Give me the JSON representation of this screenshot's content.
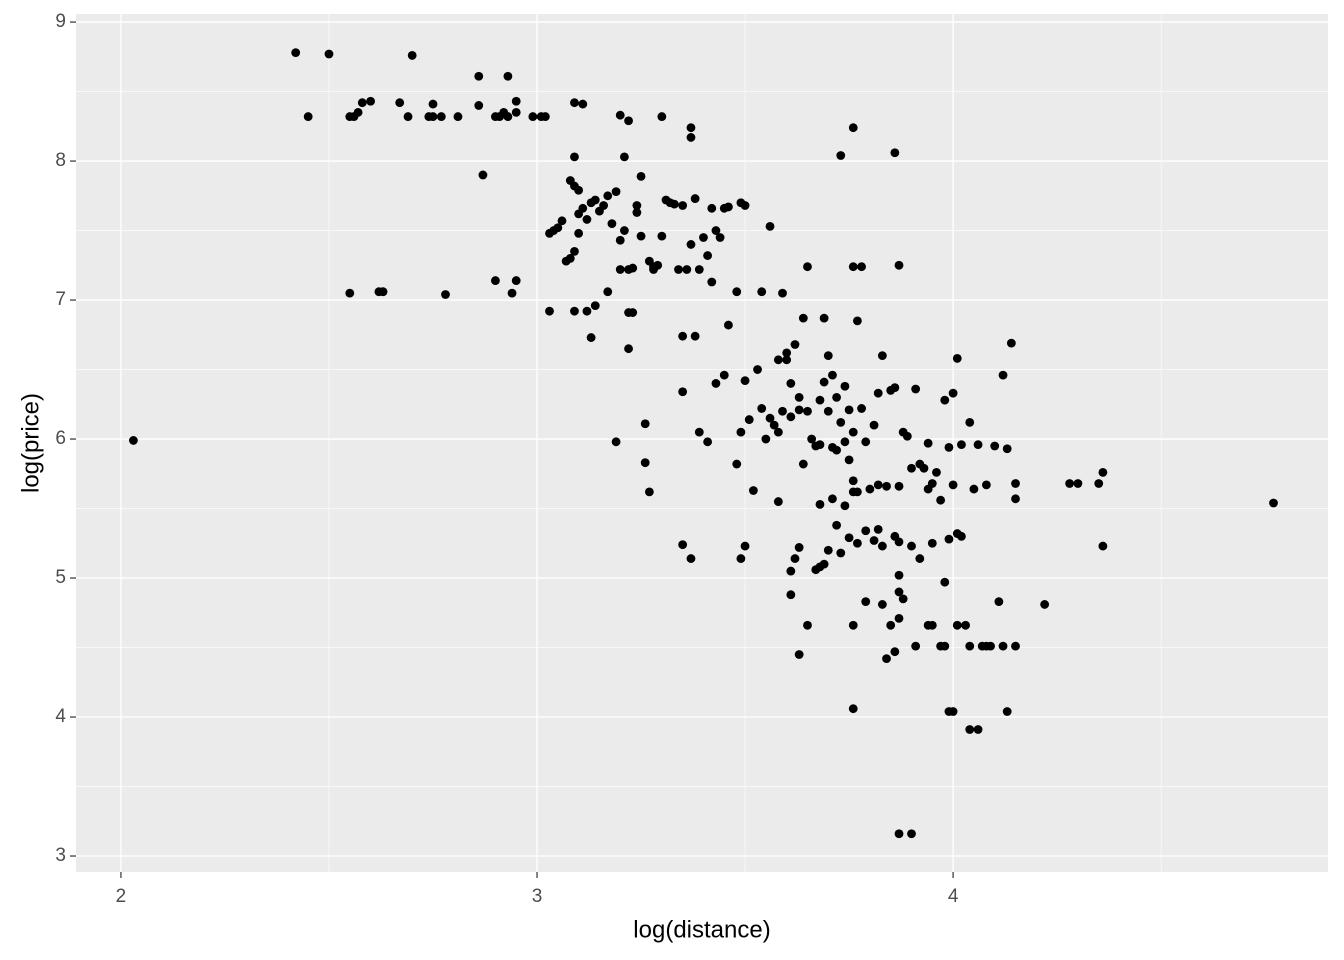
{
  "chart_data": {
    "type": "scatter",
    "x_label": "log(distance)",
    "y_label": "log(price)",
    "color": "#000000",
    "grid": true,
    "xlim": [
      1.892,
      4.901
    ],
    "ylim": [
      2.885,
      9.058
    ],
    "xticks": [
      2,
      3,
      4
    ],
    "yticks": [
      3,
      4,
      5,
      6,
      7,
      8,
      9
    ],
    "x": [
      2.03,
      2.42,
      2.5,
      2.7,
      2.45,
      2.55,
      2.56,
      2.57,
      2.58,
      2.6,
      2.67,
      2.69,
      2.74,
      2.75,
      2.75,
      2.77,
      2.81,
      2.86,
      2.86,
      2.87,
      2.9,
      2.91,
      2.92,
      2.93,
      2.93,
      2.95,
      2.95,
      2.99,
      3.01,
      3.02,
      3.09,
      3.11,
      3.2,
      3.22,
      3.3,
      3.37,
      3.37,
      3.73,
      3.76,
      3.86,
      2.55,
      2.62,
      2.63,
      2.78,
      2.9,
      2.95,
      2.94,
      3.09,
      3.08,
      3.09,
      3.1,
      3.21,
      3.25,
      3.03,
      3.04,
      3.05,
      3.06,
      3.07,
      3.08,
      3.09,
      3.1,
      3.1,
      3.11,
      3.12,
      3.13,
      3.14,
      3.15,
      3.16,
      3.17,
      3.18,
      3.19,
      3.2,
      3.21,
      3.22,
      3.23,
      3.24,
      3.24,
      3.25,
      3.27,
      3.28,
      3.29,
      3.3,
      3.31,
      3.32,
      3.33,
      3.34,
      3.35,
      3.36,
      3.37,
      3.38,
      3.39,
      3.4,
      3.41,
      3.42,
      3.43,
      3.44,
      3.45,
      3.46,
      3.49,
      3.5,
      3.56,
      3.03,
      3.09,
      3.12,
      3.13,
      3.14,
      3.17,
      3.2,
      3.22,
      3.22,
      3.23,
      3.28,
      3.35,
      3.38,
      3.42,
      3.46,
      3.48,
      3.35,
      3.39,
      3.41,
      3.43,
      3.45,
      3.48,
      3.49,
      3.5,
      3.51,
      3.52,
      3.53,
      3.54,
      3.55,
      3.56,
      3.57,
      3.58,
      3.59,
      3.6,
      3.6,
      3.61,
      3.61,
      3.62,
      3.63,
      3.63,
      3.64,
      3.64,
      3.65,
      3.66,
      3.67,
      3.68,
      3.68,
      3.69,
      3.69,
      3.7,
      3.7,
      3.71,
      3.71,
      3.72,
      3.72,
      3.73,
      3.74,
      3.74,
      3.75,
      3.75,
      3.76,
      3.76,
      3.77,
      3.77,
      3.78,
      3.79,
      3.8,
      3.81,
      3.82,
      3.82,
      3.83,
      3.84,
      3.85,
      3.86,
      3.87,
      3.88,
      3.89,
      3.9,
      3.91,
      3.92,
      3.93,
      3.94,
      3.94,
      3.95,
      3.96,
      3.97,
      3.98,
      3.99,
      4.0,
      4.0,
      4.01,
      4.02,
      4.04,
      4.05,
      4.06,
      4.08,
      4.1,
      4.12,
      4.13,
      4.14,
      4.15,
      4.15,
      4.28,
      4.3,
      4.35,
      4.36,
      4.36,
      4.77,
      3.35,
      3.37,
      3.49,
      3.5,
      3.58,
      3.58,
      3.59,
      3.65,
      3.76,
      3.78,
      3.87,
      3.54,
      3.68,
      3.69,
      3.7,
      3.71,
      3.72,
      3.73,
      3.74,
      3.75,
      3.76,
      3.77,
      3.79,
      3.81,
      3.82,
      3.83,
      3.86,
      3.87,
      3.9,
      3.92,
      3.95,
      3.99,
      4.01,
      4.02,
      3.61,
      3.62,
      3.63,
      3.61,
      3.63,
      3.65,
      3.67,
      3.68,
      3.76,
      3.76,
      3.79,
      3.83,
      3.84,
      3.85,
      3.86,
      3.87,
      3.88,
      3.87,
      3.87,
      3.91,
      3.94,
      3.95,
      3.97,
      3.98,
      3.98,
      3.99,
      4.0,
      4.01,
      4.03,
      4.04,
      4.06,
      4.04,
      4.07,
      4.08,
      4.09,
      4.11,
      4.12,
      4.13,
      4.15,
      4.22,
      3.87,
      3.9,
      3.19,
      3.26,
      3.26,
      3.27
    ],
    "values": [
      5.99,
      8.78,
      8.77,
      8.76,
      8.32,
      8.32,
      8.32,
      8.35,
      8.42,
      8.43,
      8.42,
      8.32,
      8.32,
      8.41,
      8.32,
      8.32,
      8.32,
      8.61,
      8.4,
      7.9,
      8.32,
      8.32,
      8.35,
      8.32,
      8.61,
      8.43,
      8.35,
      8.32,
      8.32,
      8.32,
      8.42,
      8.41,
      8.33,
      8.29,
      8.32,
      8.24,
      8.17,
      8.04,
      8.24,
      8.06,
      7.05,
      7.06,
      7.06,
      7.04,
      7.14,
      7.14,
      7.05,
      8.03,
      7.86,
      7.82,
      7.79,
      8.03,
      7.89,
      7.48,
      7.5,
      7.52,
      7.57,
      7.28,
      7.3,
      7.35,
      7.48,
      7.62,
      7.66,
      7.58,
      7.7,
      7.72,
      7.64,
      7.68,
      7.75,
      7.55,
      7.78,
      7.43,
      7.5,
      7.22,
      7.23,
      7.63,
      7.68,
      7.46,
      7.28,
      7.22,
      7.25,
      7.46,
      7.72,
      7.7,
      7.69,
      7.22,
      7.68,
      7.22,
      7.4,
      7.73,
      7.22,
      7.45,
      7.32,
      7.66,
      7.5,
      7.45,
      7.66,
      7.67,
      7.7,
      7.68,
      7.53,
      6.92,
      6.92,
      6.92,
      6.73,
      6.96,
      7.06,
      7.22,
      6.65,
      6.91,
      6.91,
      7.24,
      6.74,
      6.74,
      7.13,
      6.82,
      7.06,
      6.34,
      6.05,
      5.98,
      6.4,
      6.46,
      5.82,
      6.05,
      6.42,
      6.14,
      5.63,
      6.5,
      6.22,
      6.0,
      6.15,
      6.1,
      6.05,
      6.2,
      6.57,
      6.62,
      6.4,
      6.16,
      6.68,
      6.3,
      6.21,
      6.87,
      5.82,
      6.2,
      6.0,
      5.95,
      6.28,
      5.96,
      6.41,
      6.87,
      6.2,
      6.6,
      6.46,
      5.94,
      5.92,
      6.3,
      6.12,
      5.98,
      6.38,
      5.85,
      6.21,
      5.7,
      6.05,
      6.85,
      5.62,
      6.22,
      5.98,
      5.64,
      6.1,
      6.33,
      5.67,
      6.6,
      5.66,
      6.35,
      6.37,
      5.66,
      6.05,
      6.02,
      5.79,
      6.36,
      5.82,
      5.79,
      5.64,
      5.97,
      5.68,
      5.76,
      5.56,
      6.28,
      5.94,
      6.33,
      5.67,
      6.58,
      5.96,
      6.12,
      5.64,
      5.96,
      5.67,
      5.95,
      6.46,
      5.93,
      6.69,
      5.57,
      5.68,
      5.68,
      5.68,
      5.68,
      5.76,
      5.23,
      5.54,
      5.24,
      5.14,
      5.14,
      5.23,
      5.55,
      6.57,
      7.05,
      7.24,
      7.24,
      7.24,
      7.25,
      7.06,
      5.53,
      5.1,
      5.2,
      5.57,
      5.38,
      5.18,
      5.52,
      5.29,
      5.62,
      5.25,
      5.34,
      5.27,
      5.35,
      5.23,
      5.3,
      5.26,
      5.23,
      5.14,
      5.25,
      5.28,
      5.32,
      5.3,
      5.05,
      5.14,
      5.22,
      4.88,
      4.45,
      4.66,
      5.06,
      5.08,
      4.66,
      4.06,
      4.83,
      4.81,
      4.42,
      4.66,
      4.47,
      4.9,
      4.85,
      5.02,
      4.71,
      4.51,
      4.66,
      4.66,
      4.51,
      4.51,
      4.97,
      4.04,
      4.04,
      4.66,
      4.66,
      3.91,
      3.91,
      4.51,
      4.51,
      4.51,
      4.51,
      4.83,
      4.51,
      4.04,
      4.51,
      4.81,
      3.16,
      3.16,
      5.98,
      6.11,
      5.83,
      5.62
    ]
  }
}
